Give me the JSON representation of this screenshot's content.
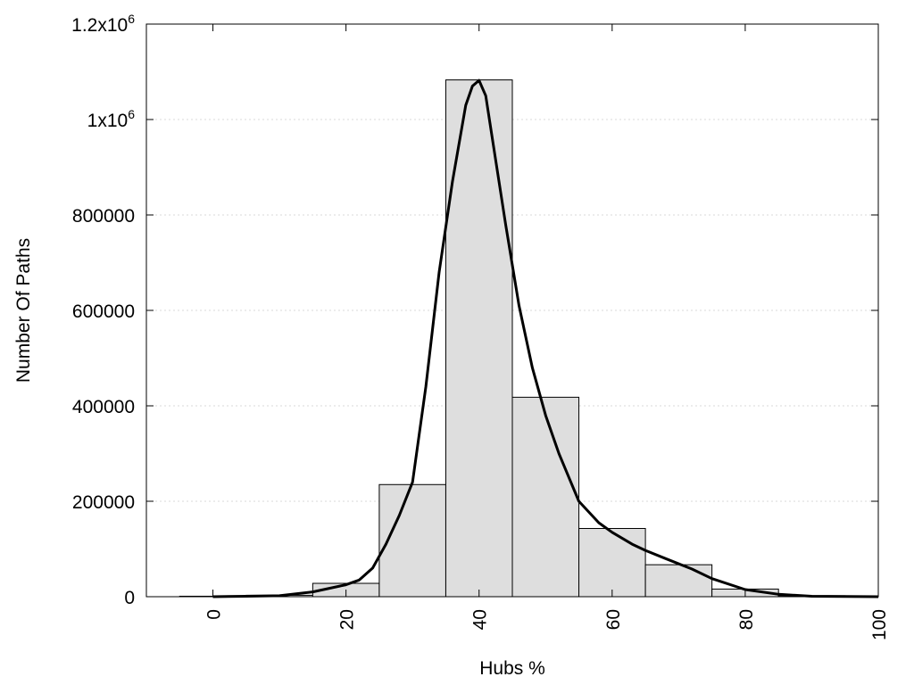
{
  "chart_data": {
    "type": "bar",
    "xlabel": "Hubs %",
    "ylabel": "Number Of Paths",
    "xlim": [
      -10,
      100
    ],
    "ylim": [
      0,
      1200000
    ],
    "grid": true,
    "x_ticks": [
      {
        "value": 0,
        "label": "0"
      },
      {
        "value": 20,
        "label": "20"
      },
      {
        "value": 40,
        "label": "40"
      },
      {
        "value": 60,
        "label": "60"
      },
      {
        "value": 80,
        "label": "80"
      },
      {
        "value": 100,
        "label": "100"
      }
    ],
    "y_ticks": [
      {
        "value": 0,
        "label": "0"
      },
      {
        "value": 200000,
        "label": "200000"
      },
      {
        "value": 400000,
        "label": "400000"
      },
      {
        "value": 600000,
        "label": "600000"
      },
      {
        "value": 800000,
        "label": "800000"
      },
      {
        "value": 1000000,
        "label": "1x10",
        "sup": "6"
      },
      {
        "value": 1200000,
        "label": "1.2x10",
        "sup": "6"
      }
    ],
    "bars": [
      {
        "x0": -5,
        "x1": 5,
        "value": 1000
      },
      {
        "x0": 5,
        "x1": 15,
        "value": 3000
      },
      {
        "x0": 15,
        "x1": 25,
        "value": 28000
      },
      {
        "x0": 25,
        "x1": 35,
        "value": 235000
      },
      {
        "x0": 35,
        "x1": 45,
        "value": 1083000
      },
      {
        "x0": 45,
        "x1": 55,
        "value": 418000
      },
      {
        "x0": 55,
        "x1": 65,
        "value": 143000
      },
      {
        "x0": 65,
        "x1": 75,
        "value": 67000
      },
      {
        "x0": 75,
        "x1": 85,
        "value": 16000
      },
      {
        "x0": 85,
        "x1": 95,
        "value": 2000
      }
    ],
    "curve": {
      "x": [
        0,
        5,
        10,
        15,
        20,
        22,
        24,
        26,
        28,
        30,
        32,
        34,
        36,
        38,
        39,
        40,
        41,
        42,
        44,
        46,
        48,
        50,
        52,
        55,
        58,
        60,
        63,
        65,
        68,
        72,
        75,
        80,
        85,
        90,
        95,
        100
      ],
      "y": [
        0,
        1000,
        2000,
        10000,
        25000,
        35000,
        60000,
        110000,
        170000,
        240000,
        440000,
        680000,
        870000,
        1030000,
        1070000,
        1082000,
        1050000,
        960000,
        780000,
        610000,
        480000,
        380000,
        300000,
        200000,
        155000,
        135000,
        110000,
        97000,
        80000,
        58000,
        38000,
        15000,
        5000,
        1000,
        300,
        0
      ]
    }
  }
}
